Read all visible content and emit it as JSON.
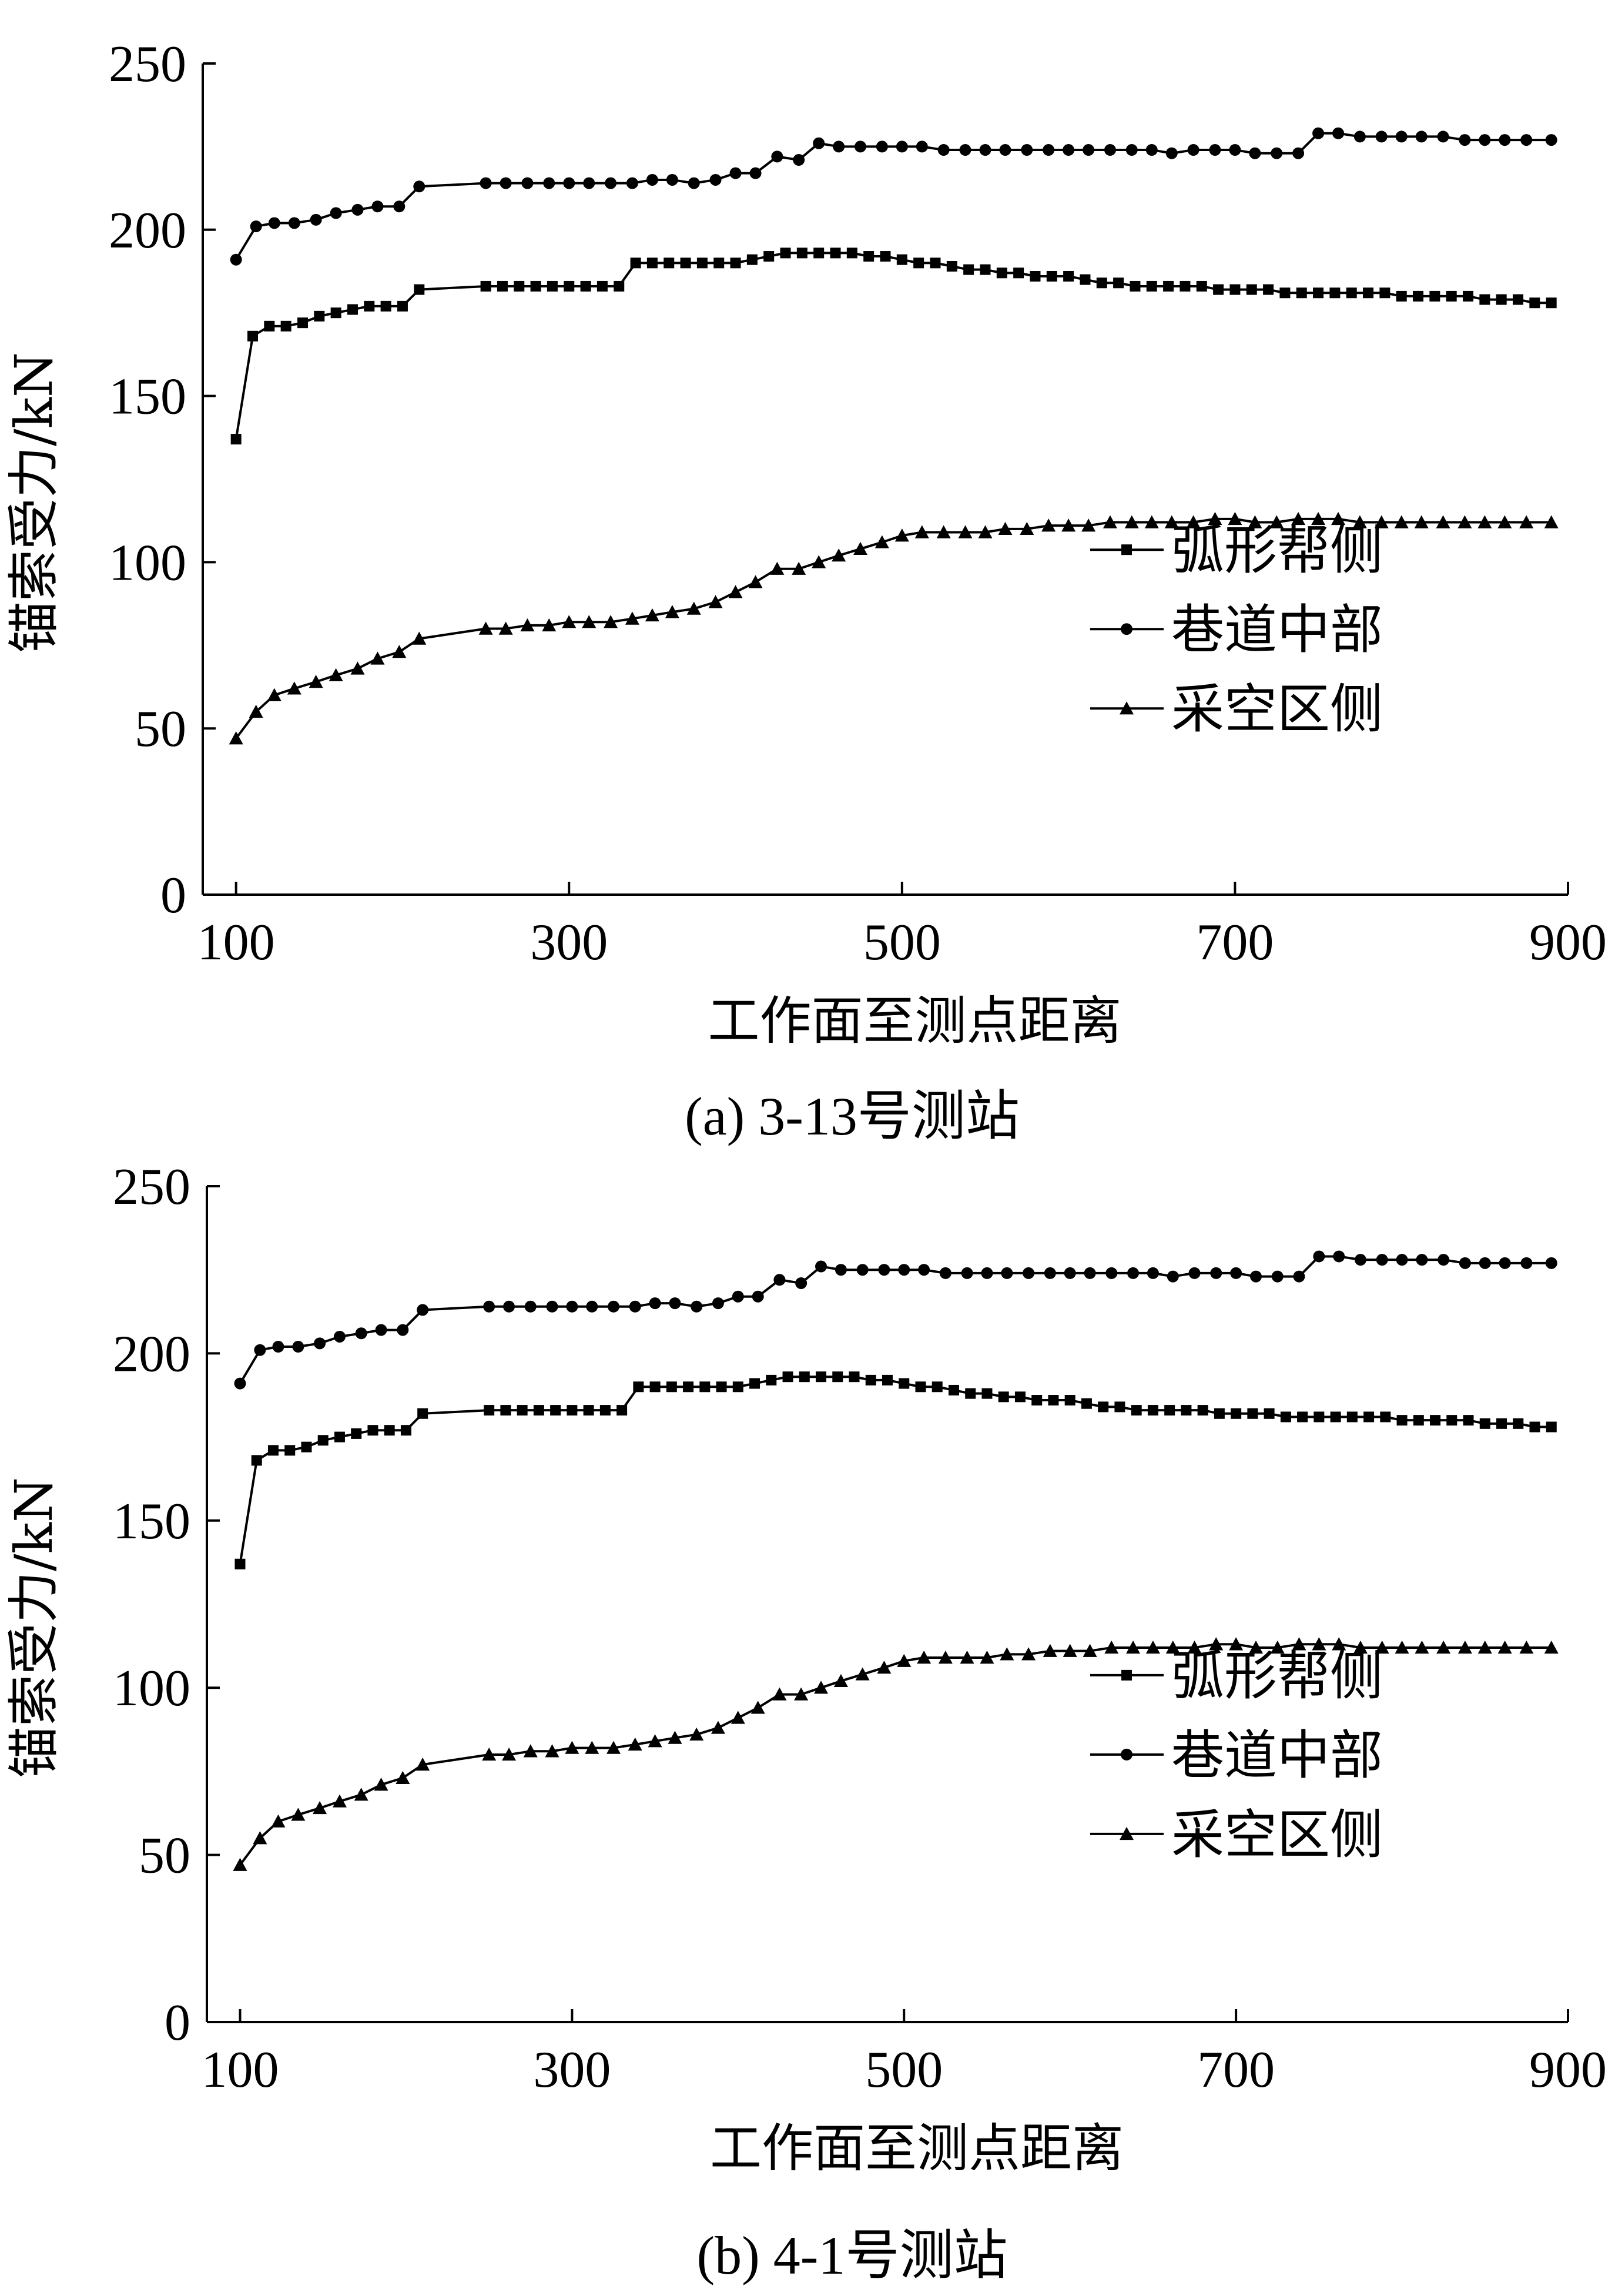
{
  "chart_data": [
    {
      "type": "line",
      "caption": "(a) 3-13号测站",
      "xlabel": "工作面至测点距离",
      "ylabel": "锚索受力/kN",
      "xlim": [
        80,
        900
      ],
      "ylim": [
        0,
        250
      ],
      "xticks": [
        100,
        300,
        500,
        700,
        900
      ],
      "yticks": [
        0,
        50,
        100,
        150,
        200,
        250
      ],
      "grid": false,
      "legend_position": "lower-right",
      "series": [
        {
          "name": "弧形帮侧",
          "marker": "square",
          "x": [
            100,
            110,
            120,
            130,
            140,
            150,
            160,
            170,
            180,
            190,
            200,
            210,
            250,
            260,
            270,
            280,
            290,
            300,
            310,
            320,
            330,
            340,
            350,
            360,
            370,
            380,
            390,
            400,
            410,
            420,
            430,
            440,
            450,
            460,
            470,
            480,
            490,
            500,
            510,
            520,
            530,
            540,
            550,
            560,
            570,
            580,
            590,
            600,
            610,
            620,
            630,
            640,
            650,
            660,
            670,
            680,
            690,
            700,
            710,
            720,
            730,
            740,
            750,
            760,
            770,
            780,
            790,
            800,
            810,
            820,
            830,
            840,
            850,
            860,
            870,
            880,
            890
          ],
          "y": [
            137,
            168,
            171,
            171,
            172,
            174,
            175,
            176,
            177,
            177,
            177,
            182,
            183,
            183,
            183,
            183,
            183,
            183,
            183,
            183,
            183,
            190,
            190,
            190,
            190,
            190,
            190,
            190,
            191,
            192,
            193,
            193,
            193,
            193,
            193,
            192,
            192,
            191,
            190,
            190,
            189,
            188,
            188,
            187,
            187,
            186,
            186,
            186,
            185,
            184,
            184,
            183,
            183,
            183,
            183,
            183,
            182,
            182,
            182,
            182,
            181,
            181,
            181,
            181,
            181,
            181,
            181,
            180,
            180,
            180,
            180,
            180,
            179,
            179,
            179,
            178,
            178
          ]
        },
        {
          "name": "巷道中部",
          "marker": "circle",
          "x": [
            100,
            112,
            123,
            135,
            148,
            160,
            173,
            185,
            198,
            210,
            250,
            262,
            275,
            288,
            300,
            312,
            325,
            338,
            350,
            362,
            375,
            388,
            400,
            412,
            425,
            438,
            450,
            462,
            475,
            488,
            500,
            512,
            525,
            538,
            550,
            562,
            575,
            588,
            600,
            612,
            625,
            638,
            650,
            662,
            675,
            688,
            700,
            712,
            725,
            738,
            750,
            762,
            775,
            788,
            800,
            812,
            825,
            838,
            850,
            862,
            875,
            890
          ],
          "y": [
            191,
            201,
            202,
            202,
            203,
            205,
            206,
            207,
            207,
            213,
            214,
            214,
            214,
            214,
            214,
            214,
            214,
            214,
            215,
            215,
            214,
            215,
            217,
            217,
            222,
            221,
            226,
            225,
            225,
            225,
            225,
            225,
            224,
            224,
            224,
            224,
            224,
            224,
            224,
            224,
            224,
            224,
            224,
            223,
            224,
            224,
            224,
            223,
            223,
            223,
            229,
            229,
            228,
            228,
            228,
            228,
            228,
            227,
            227,
            227,
            227,
            227
          ]
        },
        {
          "name": "采空区侧",
          "marker": "triangle",
          "x": [
            100,
            112,
            123,
            135,
            148,
            160,
            173,
            185,
            198,
            210,
            250,
            262,
            275,
            288,
            300,
            312,
            325,
            338,
            350,
            362,
            375,
            388,
            400,
            412,
            425,
            438,
            450,
            462,
            475,
            488,
            500,
            512,
            525,
            538,
            550,
            562,
            575,
            588,
            600,
            612,
            625,
            638,
            650,
            662,
            675,
            688,
            700,
            712,
            725,
            738,
            750,
            762,
            775,
            788,
            800,
            812,
            825,
            838,
            850,
            862,
            875,
            890
          ],
          "y": [
            47,
            55,
            60,
            62,
            64,
            66,
            68,
            71,
            73,
            77,
            80,
            80,
            81,
            81,
            82,
            82,
            82,
            83,
            84,
            85,
            86,
            88,
            91,
            94,
            98,
            98,
            100,
            102,
            104,
            106,
            108,
            109,
            109,
            109,
            109,
            110,
            110,
            111,
            111,
            111,
            112,
            112,
            112,
            112,
            112,
            113,
            113,
            112,
            112,
            113,
            113,
            113,
            112,
            112,
            112,
            112,
            112,
            112,
            112,
            112,
            112,
            112
          ]
        }
      ]
    },
    {
      "type": "line",
      "caption": "(b)  4-1号测站",
      "xlabel": "工作面至测点距离",
      "ylabel": "锚索受力/kN",
      "xlim": [
        80,
        900
      ],
      "ylim": [
        0,
        250
      ],
      "xticks": [
        100,
        300,
        500,
        700,
        900
      ],
      "yticks": [
        0,
        50,
        100,
        150,
        200,
        250
      ],
      "grid": false,
      "legend_position": "lower-right",
      "series": [
        {
          "name": "弧形帮侧",
          "marker": "square",
          "x": [
            100,
            110,
            120,
            130,
            140,
            150,
            160,
            170,
            180,
            190,
            200,
            210,
            250,
            260,
            270,
            280,
            290,
            300,
            310,
            320,
            330,
            340,
            350,
            360,
            370,
            380,
            390,
            400,
            410,
            420,
            430,
            440,
            450,
            460,
            470,
            480,
            490,
            500,
            510,
            520,
            530,
            540,
            550,
            560,
            570,
            580,
            590,
            600,
            610,
            620,
            630,
            640,
            650,
            660,
            670,
            680,
            690,
            700,
            710,
            720,
            730,
            740,
            750,
            760,
            770,
            780,
            790,
            800,
            810,
            820,
            830,
            840,
            850,
            860,
            870,
            880,
            890
          ],
          "y": [
            137,
            168,
            171,
            171,
            172,
            174,
            175,
            176,
            177,
            177,
            177,
            182,
            183,
            183,
            183,
            183,
            183,
            183,
            183,
            183,
            183,
            190,
            190,
            190,
            190,
            190,
            190,
            190,
            191,
            192,
            193,
            193,
            193,
            193,
            193,
            192,
            192,
            191,
            190,
            190,
            189,
            188,
            188,
            187,
            187,
            186,
            186,
            186,
            185,
            184,
            184,
            183,
            183,
            183,
            183,
            183,
            182,
            182,
            182,
            182,
            181,
            181,
            181,
            181,
            181,
            181,
            181,
            180,
            180,
            180,
            180,
            180,
            179,
            179,
            179,
            178,
            178
          ]
        },
        {
          "name": "巷道中部",
          "marker": "circle",
          "x": [
            100,
            112,
            123,
            135,
            148,
            160,
            173,
            185,
            198,
            210,
            250,
            262,
            275,
            288,
            300,
            312,
            325,
            338,
            350,
            362,
            375,
            388,
            400,
            412,
            425,
            438,
            450,
            462,
            475,
            488,
            500,
            512,
            525,
            538,
            550,
            562,
            575,
            588,
            600,
            612,
            625,
            638,
            650,
            662,
            675,
            688,
            700,
            712,
            725,
            738,
            750,
            762,
            775,
            788,
            800,
            812,
            825,
            838,
            850,
            862,
            875,
            890
          ],
          "y": [
            191,
            201,
            202,
            202,
            203,
            205,
            206,
            207,
            207,
            213,
            214,
            214,
            214,
            214,
            214,
            214,
            214,
            214,
            215,
            215,
            214,
            215,
            217,
            217,
            222,
            221,
            226,
            225,
            225,
            225,
            225,
            225,
            224,
            224,
            224,
            224,
            224,
            224,
            224,
            224,
            224,
            224,
            224,
            223,
            224,
            224,
            224,
            223,
            223,
            223,
            229,
            229,
            228,
            228,
            228,
            228,
            228,
            227,
            227,
            227,
            227,
            227
          ]
        },
        {
          "name": "采空区侧",
          "marker": "triangle",
          "x": [
            100,
            112,
            123,
            135,
            148,
            160,
            173,
            185,
            198,
            210,
            250,
            262,
            275,
            288,
            300,
            312,
            325,
            338,
            350,
            362,
            375,
            388,
            400,
            412,
            425,
            438,
            450,
            462,
            475,
            488,
            500,
            512,
            525,
            538,
            550,
            562,
            575,
            588,
            600,
            612,
            625,
            638,
            650,
            662,
            675,
            688,
            700,
            712,
            725,
            738,
            750,
            762,
            775,
            788,
            800,
            812,
            825,
            838,
            850,
            862,
            875,
            890
          ],
          "y": [
            47,
            55,
            60,
            62,
            64,
            66,
            68,
            71,
            73,
            77,
            80,
            80,
            81,
            81,
            82,
            82,
            82,
            83,
            84,
            85,
            86,
            88,
            91,
            94,
            98,
            98,
            100,
            102,
            104,
            106,
            108,
            109,
            109,
            109,
            109,
            110,
            110,
            111,
            111,
            111,
            112,
            112,
            112,
            112,
            112,
            113,
            113,
            112,
            112,
            113,
            113,
            113,
            112,
            112,
            112,
            112,
            112,
            112,
            112,
            112,
            112,
            112
          ]
        }
      ]
    }
  ]
}
